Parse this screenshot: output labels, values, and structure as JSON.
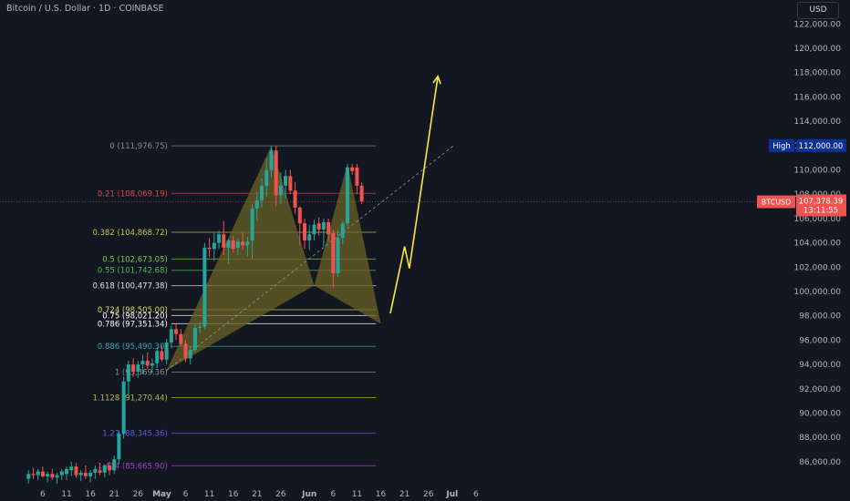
{
  "header": {
    "title": "Bitcoin / U.S. Dollar · 1D · COINBASE",
    "currency_button": "USD"
  },
  "colors": {
    "bg": "#131722",
    "up": "#26a69a",
    "down": "#ef5350",
    "axis_text": "#b2b5be",
    "pattern_fill": "#6b6226",
    "projection": "#f5eb3b",
    "high_badge": "#0c3299"
  },
  "chart_data": {
    "type": "candlestick",
    "symbol": "BTCUSD",
    "timeframe": "1D",
    "exchange": "COINBASE",
    "ylim": [
      84500,
      123000
    ],
    "y_ticks": [
      "86,000.00",
      "88,000.00",
      "90,000.00",
      "92,000.00",
      "94,000.00",
      "96,000.00",
      "98,000.00",
      "100,000.00",
      "102,000.00",
      "104,000.00",
      "106,000.00",
      "108,000.00",
      "110,000.00",
      "112,000.00",
      "114,000.00",
      "116,000.00",
      "118,000.00",
      "120,000.00",
      "122,000.00"
    ],
    "x_ticks": [
      "6",
      "11",
      "16",
      "21",
      "26",
      "May",
      "6",
      "11",
      "16",
      "21",
      "26",
      "Jun",
      "6",
      "11",
      "16",
      "21",
      "26",
      "Jul",
      "6"
    ],
    "x_tick_days": [
      -55,
      -50,
      -45,
      -40,
      -35,
      -30,
      -25,
      -20,
      -15,
      -10,
      -5,
      1,
      6,
      11,
      16,
      21,
      26,
      31,
      36
    ],
    "candles": [
      [
        -58,
        84600,
        85300,
        84200,
        85000
      ],
      [
        -57,
        85000,
        85500,
        84600,
        84900
      ],
      [
        -56,
        84900,
        85400,
        84500,
        85200
      ],
      [
        -55,
        85200,
        85600,
        84700,
        84800
      ],
      [
        -54,
        84800,
        85200,
        84300,
        85000
      ],
      [
        -53,
        85000,
        85400,
        84500,
        84700
      ],
      [
        -52,
        84700,
        85100,
        84200,
        84900
      ],
      [
        -51,
        84900,
        85400,
        84500,
        85200
      ],
      [
        -50,
        85000,
        85600,
        84500,
        85400
      ],
      [
        -49,
        85300,
        86000,
        84800,
        85600
      ],
      [
        -48,
        85600,
        85900,
        84700,
        84900
      ],
      [
        -47,
        84900,
        85300,
        84400,
        85100
      ],
      [
        -46,
        85100,
        85700,
        84600,
        84800
      ],
      [
        -45,
        84800,
        85300,
        84300,
        85100
      ],
      [
        -44,
        85100,
        85700,
        84600,
        85400
      ],
      [
        -43,
        85300,
        85900,
        84900,
        85100
      ],
      [
        -42,
        85100,
        85800,
        84700,
        85700
      ],
      [
        -41,
        85700,
        86000,
        84900,
        85300
      ],
      [
        -40,
        85300,
        86500,
        85000,
        86200
      ],
      [
        -39,
        86200,
        88500,
        85800,
        88300
      ],
      [
        -38,
        88300,
        93000,
        87900,
        92600
      ],
      [
        -37,
        92600,
        94300,
        91500,
        94000
      ],
      [
        -36,
        94000,
        94500,
        93000,
        93400
      ],
      [
        -35,
        93400,
        94300,
        92900,
        94000
      ],
      [
        -34,
        94000,
        94800,
        93200,
        94300
      ],
      [
        -33,
        94300,
        95000,
        93600,
        93900
      ],
      [
        -32,
        93900,
        94500,
        93300,
        94100
      ],
      [
        -31,
        94100,
        95400,
        93700,
        95100
      ],
      [
        -30,
        95100,
        95600,
        94200,
        94400
      ],
      [
        -29,
        94400,
        96100,
        94000,
        95800
      ],
      [
        -28,
        95800,
        97200,
        95300,
        96900
      ],
      [
        -27,
        96900,
        97300,
        96000,
        96500
      ],
      [
        -26,
        96500,
        96900,
        95500,
        95700
      ],
      [
        -25,
        95700,
        96000,
        94200,
        94500
      ],
      [
        -24,
        94500,
        95500,
        94000,
        95200
      ],
      [
        -23,
        95200,
        97300,
        95000,
        97000
      ],
      [
        -22,
        97000,
        97500,
        96600,
        97100
      ],
      [
        -21,
        97100,
        104000,
        96900,
        103600
      ],
      [
        -20,
        103600,
        104400,
        102800,
        103500
      ],
      [
        -19,
        103500,
        104800,
        102500,
        104000
      ],
      [
        -18,
        104000,
        105000,
        103500,
        104700
      ],
      [
        -17,
        104700,
        105800,
        103000,
        103600
      ],
      [
        -16,
        103600,
        104300,
        102300,
        104200
      ],
      [
        -15,
        104200,
        104600,
        103200,
        103500
      ],
      [
        -14,
        103600,
        104400,
        103000,
        104100
      ],
      [
        -13,
        104100,
        104900,
        103400,
        103800
      ],
      [
        -12,
        103800,
        104500,
        102900,
        104100
      ],
      [
        -11,
        104200,
        107200,
        102700,
        106800
      ],
      [
        -10,
        106800,
        108200,
        105800,
        107500
      ],
      [
        -9,
        107500,
        109300,
        106900,
        108700
      ],
      [
        -8,
        108700,
        111000,
        107800,
        110000
      ],
      [
        -7,
        110000,
        111980,
        109400,
        111600
      ],
      [
        -6,
        111600,
        111980,
        107000,
        107900
      ],
      [
        -5,
        107900,
        109800,
        107200,
        108700
      ],
      [
        -4,
        108700,
        110000,
        107700,
        109500
      ],
      [
        -3,
        109500,
        110000,
        108000,
        108300
      ],
      [
        -2,
        108300,
        109000,
        106400,
        106900
      ],
      [
        -1,
        106900,
        107000,
        103800,
        105600
      ],
      [
        0,
        105600,
        106000,
        103500,
        104200
      ],
      [
        1,
        104200,
        105500,
        103400,
        104700
      ],
      [
        2,
        104700,
        105900,
        104200,
        105500
      ],
      [
        3,
        105600,
        106100,
        104600,
        105100
      ],
      [
        4,
        105100,
        106000,
        103700,
        105700
      ],
      [
        5,
        105700,
        106000,
        104100,
        104700
      ],
      [
        6,
        104800,
        105100,
        100300,
        101500
      ],
      [
        7,
        101500,
        105000,
        101200,
        104400
      ],
      [
        8,
        104400,
        105800,
        103900,
        105600
      ],
      [
        9,
        105600,
        110500,
        105300,
        110200
      ],
      [
        10,
        110200,
        110500,
        109600,
        109900
      ],
      [
        11,
        110200,
        110500,
        108000,
        108700
      ],
      [
        12,
        108700,
        109000,
        107200,
        107400
      ]
    ],
    "fib_levels": [
      {
        "label": "0 (111,976.75)",
        "value": 111976.75,
        "color": "#8a8c94"
      },
      {
        "label": "0.21 (108,069.19)",
        "value": 108069.19,
        "color": "#e04848"
      },
      {
        "label": "0.382 (104,868.72)",
        "value": 104868.72,
        "color": "#c5c34a"
      },
      {
        "label": "0.5 (102,673.05)",
        "value": 102673.05,
        "color": "#7ec84c"
      },
      {
        "label": "0.55 (101,742.68)",
        "value": 101742.68,
        "color": "#58b85a"
      },
      {
        "label": "0.618 (100,477.38)",
        "value": 100477.38,
        "color": "#e0e3eb"
      },
      {
        "label": "0.724 (98,505.00)",
        "value": 98505.0,
        "color": "#dada55"
      },
      {
        "label": "0.75 (98,021.20)",
        "value": 98021.2,
        "color": "#ffffff"
      },
      {
        "label": "0.786 (97,351.34)",
        "value": 97351.34,
        "color": "#ffffff"
      },
      {
        "label": "0.886 (95,490.30)",
        "value": 95490.3,
        "color": "#37a8a0"
      },
      {
        "label": "1 (93,369.36)",
        "value": 93369.36,
        "color": "#8a8c94"
      },
      {
        "label": "1.1128 (91,270.44)",
        "value": 91270.44,
        "color": "#b6b646"
      },
      {
        "label": "1.27 (88,345.36)",
        "value": 88345.36,
        "color": "#5c5ad6"
      },
      {
        "label": "1.414 (85,665.90)",
        "value": 85665.9,
        "color": "#a53fc4"
      }
    ],
    "pattern_points": {
      "X": [
        -29,
        93500
      ],
      "A": [
        -7,
        111980
      ],
      "B": [
        2,
        100500
      ],
      "C": [
        9,
        110500
      ],
      "D": [
        16,
        97350
      ]
    },
    "projection": [
      [
        18,
        98200
      ],
      [
        21,
        103700
      ],
      [
        22,
        101900
      ],
      [
        28,
        117700
      ]
    ],
    "high_badge": {
      "label": "High",
      "value": "112,000.00",
      "price": 112000
    },
    "current_badge": {
      "symbol": "BTCUSD",
      "price": "107,378.39",
      "countdown": "13:11:55",
      "value": 107378.39
    }
  }
}
